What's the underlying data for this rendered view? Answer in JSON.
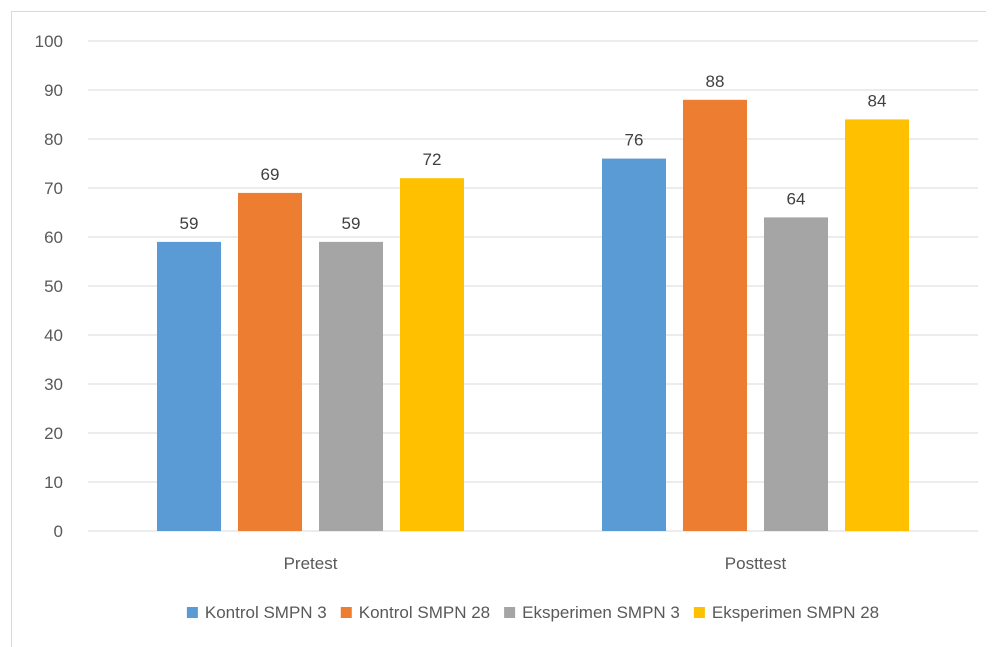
{
  "chart_data": {
    "type": "bar",
    "categories": [
      "Pretest",
      "Posttest"
    ],
    "series": [
      {
        "name": "Kontrol SMPN 3",
        "values": [
          59,
          76
        ],
        "color": "#5b9bd5"
      },
      {
        "name": "Kontrol SMPN 28",
        "values": [
          69,
          88
        ],
        "color": "#ed7d31"
      },
      {
        "name": "Eksperimen SMPN 3",
        "values": [
          59,
          64
        ],
        "color": "#a5a5a5"
      },
      {
        "name": "Eksperimen SMPN 28",
        "values": [
          72,
          84
        ],
        "color": "#ffc000"
      }
    ],
    "yticks": [
      "0",
      "10",
      "20",
      "30",
      "40",
      "50",
      "60",
      "70",
      "80",
      "90",
      "100"
    ],
    "ylim": [
      0,
      100
    ],
    "grid": true,
    "data_labels": true,
    "legend_position": "bottom",
    "gridline_color": "#d9d9d9"
  }
}
